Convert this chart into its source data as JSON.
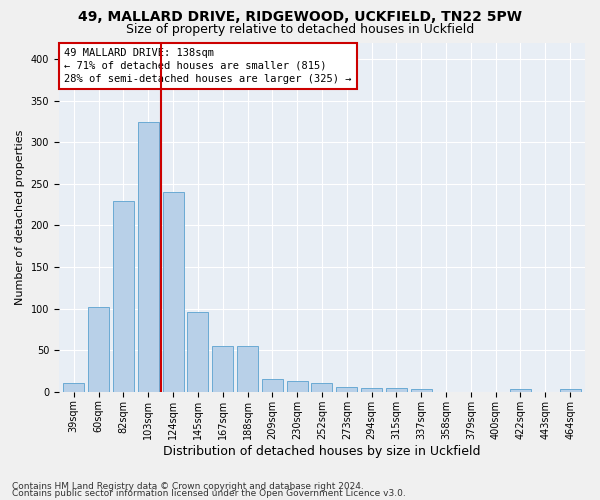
{
  "title1": "49, MALLARD DRIVE, RIDGEWOOD, UCKFIELD, TN22 5PW",
  "title2": "Size of property relative to detached houses in Uckfield",
  "xlabel": "Distribution of detached houses by size in Uckfield",
  "ylabel": "Number of detached properties",
  "categories": [
    "39sqm",
    "60sqm",
    "82sqm",
    "103sqm",
    "124sqm",
    "145sqm",
    "167sqm",
    "188sqm",
    "209sqm",
    "230sqm",
    "252sqm",
    "273sqm",
    "294sqm",
    "315sqm",
    "337sqm",
    "358sqm",
    "379sqm",
    "400sqm",
    "422sqm",
    "443sqm",
    "464sqm"
  ],
  "values": [
    10,
    102,
    230,
    325,
    240,
    96,
    55,
    55,
    15,
    13,
    10,
    6,
    4,
    4,
    3,
    0,
    0,
    0,
    3,
    0,
    3
  ],
  "bar_color": "#b8d0e8",
  "bar_edge_color": "#6aaad4",
  "vline_color": "#cc0000",
  "vline_pos": 3.5,
  "annotation_text": "49 MALLARD DRIVE: 138sqm\n← 71% of detached houses are smaller (815)\n28% of semi-detached houses are larger (325) →",
  "annotation_box_color": "#ffffff",
  "annotation_box_edge": "#cc0000",
  "ylim": [
    0,
    420
  ],
  "yticks": [
    0,
    50,
    100,
    150,
    200,
    250,
    300,
    350,
    400
  ],
  "background_color": "#e8eef5",
  "grid_color": "#ffffff",
  "footer1": "Contains HM Land Registry data © Crown copyright and database right 2024.",
  "footer2": "Contains public sector information licensed under the Open Government Licence v3.0.",
  "title1_fontsize": 10,
  "title2_fontsize": 9,
  "xlabel_fontsize": 9,
  "ylabel_fontsize": 8,
  "tick_fontsize": 7,
  "annotation_fontsize": 7.5,
  "footer_fontsize": 6.5
}
